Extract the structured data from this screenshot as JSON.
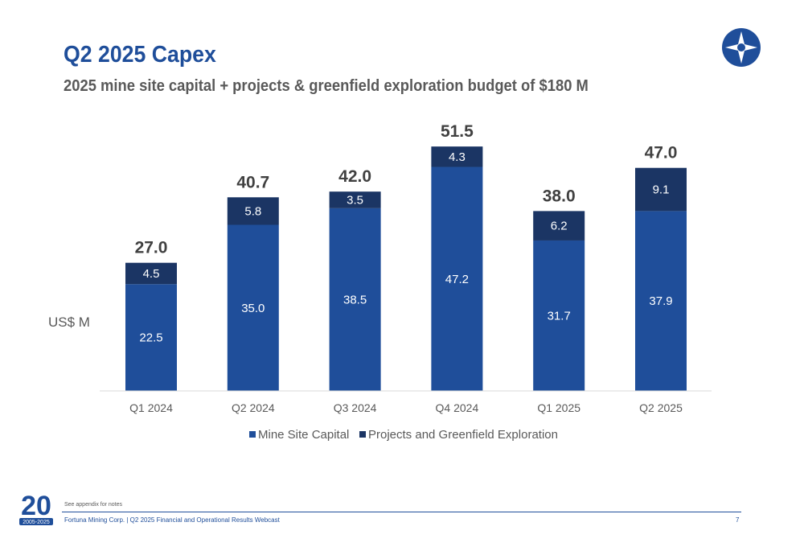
{
  "header": {
    "title": "Q2 2025 Capex",
    "subtitle": "2025 mine site capital + projects & greenfield exploration budget of $180 M"
  },
  "colors": {
    "title": "#1f4e9a",
    "mine_site_capital": "#1f4e9a",
    "projects_exploration": "#1b3564",
    "footer": "#1f4e9a"
  },
  "logo": {
    "icon": "fortuna-star-circle-logo"
  },
  "anniversary_badge": {
    "icon": "20-years-badge",
    "text": "2005-2025"
  },
  "chart_data": {
    "type": "bar",
    "stacked": true,
    "ylabel": "US$ M",
    "categories": [
      "Q1 2024",
      "Q2 2024",
      "Q3 2024",
      "Q4 2024",
      "Q1 2025",
      "Q2 2025"
    ],
    "series": [
      {
        "name": "Mine Site Capital",
        "values": [
          22.5,
          35.0,
          38.5,
          47.2,
          31.7,
          37.9
        ]
      },
      {
        "name": "Projects and Greenfield Exploration",
        "values": [
          4.5,
          5.8,
          3.5,
          4.3,
          6.2,
          9.1
        ]
      }
    ],
    "value_labels": [
      [
        "22.5",
        "35.0",
        "38.5",
        "47.2",
        "31.7",
        "37.9"
      ],
      [
        "4.5",
        "5.8",
        "3.5",
        "4.3",
        "6.2",
        "9.1"
      ]
    ],
    "totals": [
      "27.0",
      "40.7",
      "42.0",
      "51.5",
      "38.0",
      "47.0"
    ],
    "legend_position": "bottom",
    "grid": false
  },
  "footer": {
    "note": "See appendix for notes",
    "text": "Fortuna Mining Corp. | Q2 2025 Financial and Operational Results Webcast",
    "page": "7"
  }
}
